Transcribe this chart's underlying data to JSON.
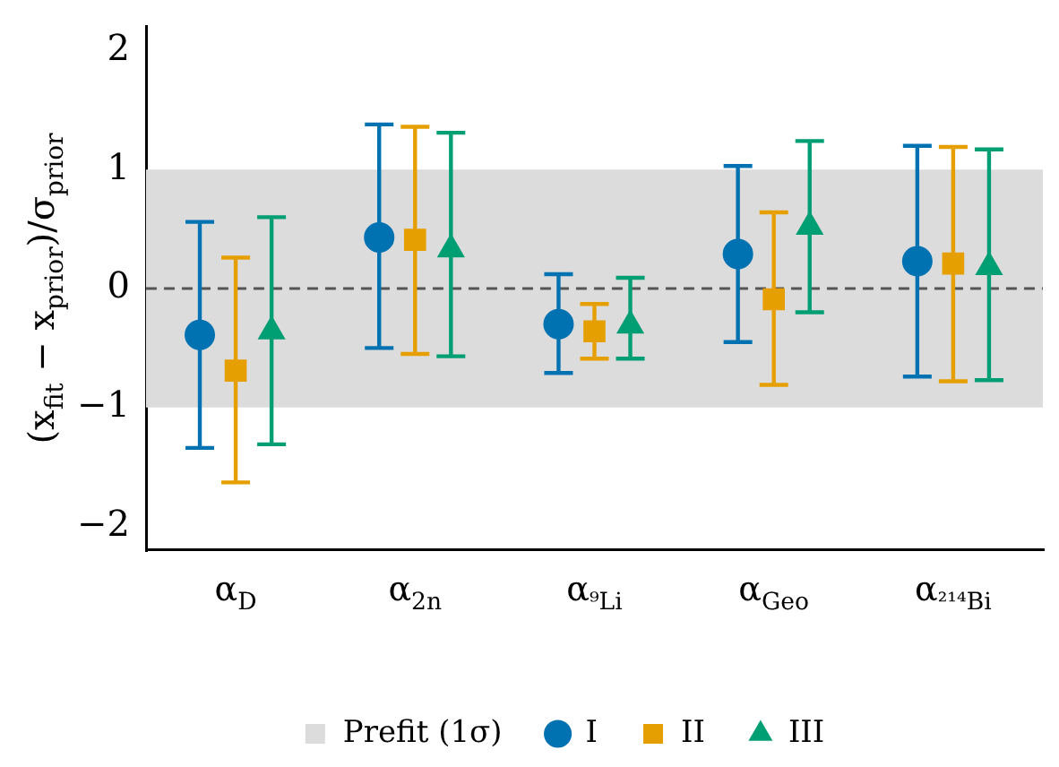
{
  "chart_data": {
    "type": "scatter",
    "ylabel": "(x$_{fit}$ − x$_{prior}$)/σ$_{prior}$",
    "categories": [
      "α$_{D}$",
      "α$_{2n}$",
      "α$_{⁹Li}$",
      "α$_{Geo}$",
      "α$_{²¹⁴Bi}$"
    ],
    "series": [
      {
        "name": "I",
        "color": "#0072b2",
        "marker": "circle",
        "values": [
          -0.39,
          0.43,
          -0.3,
          0.29,
          0.23
        ],
        "errors": [
          [
            -1.34,
            0.56
          ],
          [
            -0.5,
            1.38
          ],
          [
            -0.71,
            0.12
          ],
          [
            -0.45,
            1.03
          ],
          [
            -0.74,
            1.2
          ]
        ]
      },
      {
        "name": "II",
        "color": "#e69f00",
        "marker": "square",
        "values": [
          -0.69,
          0.41,
          -0.36,
          -0.09,
          0.21
        ],
        "errors": [
          [
            -1.63,
            0.26
          ],
          [
            -0.55,
            1.36
          ],
          [
            -0.59,
            -0.13
          ],
          [
            -0.81,
            0.64
          ],
          [
            -0.78,
            1.19
          ]
        ]
      },
      {
        "name": "III",
        "color": "#009e73",
        "marker": "triangle",
        "values": [
          -0.36,
          0.33,
          -0.31,
          0.52,
          0.18
        ],
        "errors": [
          [
            -1.31,
            0.6
          ],
          [
            -0.57,
            1.31
          ],
          [
            -0.59,
            0.09
          ],
          [
            -0.2,
            1.24
          ],
          [
            -0.77,
            1.17
          ]
        ]
      }
    ],
    "ylim": [
      -2.2,
      2.2
    ],
    "yticks": [
      -2,
      -1,
      0,
      1,
      2
    ],
    "bands": [
      {
        "axis": "y",
        "from": -1,
        "to": 1,
        "label": "Prefit (1σ)",
        "color": "#dcdcdc"
      }
    ],
    "ref_lines": [
      {
        "axis": "y",
        "value": 0,
        "color": "#555555",
        "line_style": "dashed"
      }
    ],
    "legend": "bottom",
    "grid": false
  }
}
